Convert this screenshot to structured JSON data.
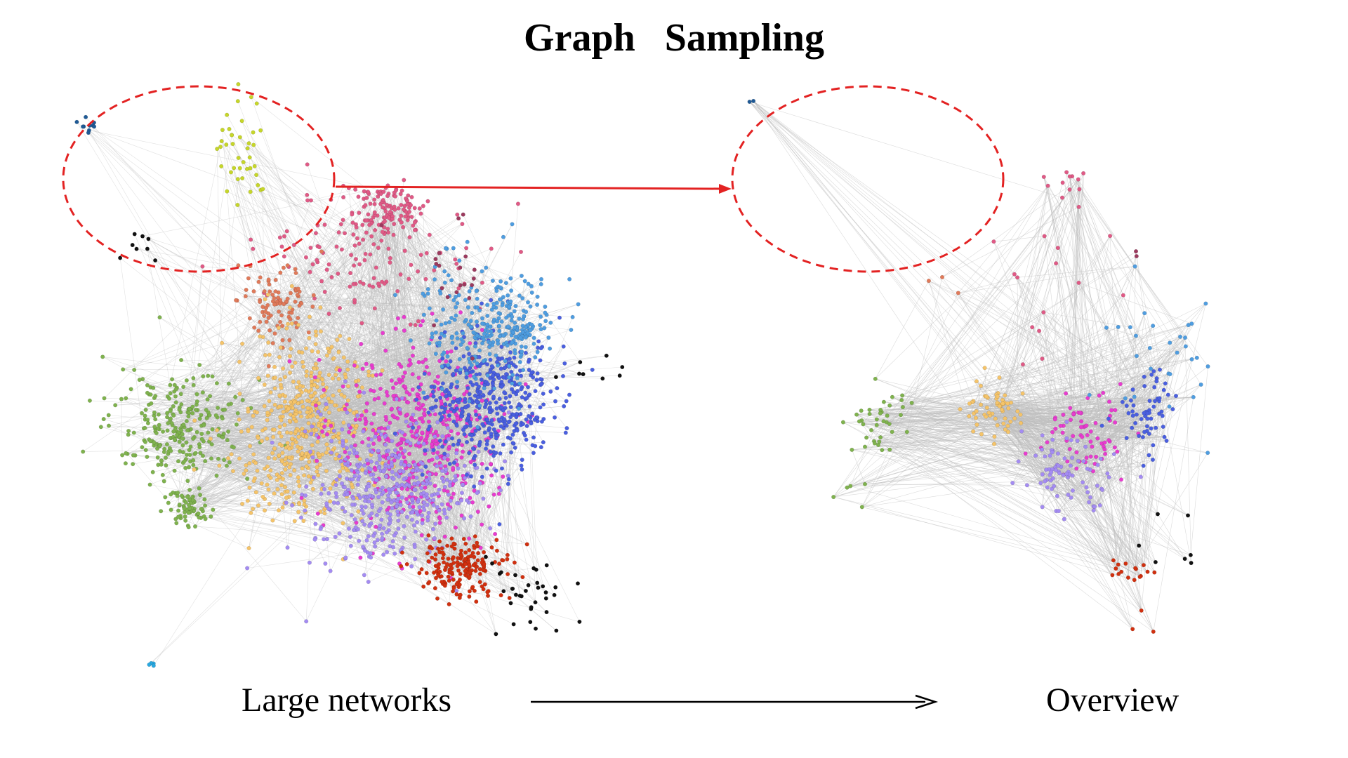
{
  "figure": {
    "title": "Graph   Sampling",
    "left_label": "Large networks",
    "right_label": "Overview"
  },
  "colors": {
    "edge": "#bdbdbd",
    "highlight_ellipse": "#e32222",
    "highlight_arrow": "#e32222",
    "bottom_arrow": "#000000",
    "communities": {
      "navy": "#1f5a96",
      "lime": "#c6d62a",
      "black": "#111111",
      "pink": "#e05a86",
      "salmon": "#e07a5a",
      "green": "#7fb24e",
      "orange": "#f5c46a",
      "magenta": "#e83ccf",
      "lavender": "#a48cf2",
      "blue": "#4a5fe0",
      "skyblue": "#4f9de0",
      "red": "#d1300f",
      "cyan": "#29a8e0",
      "maroon": "#9c3a5e"
    }
  }
}
